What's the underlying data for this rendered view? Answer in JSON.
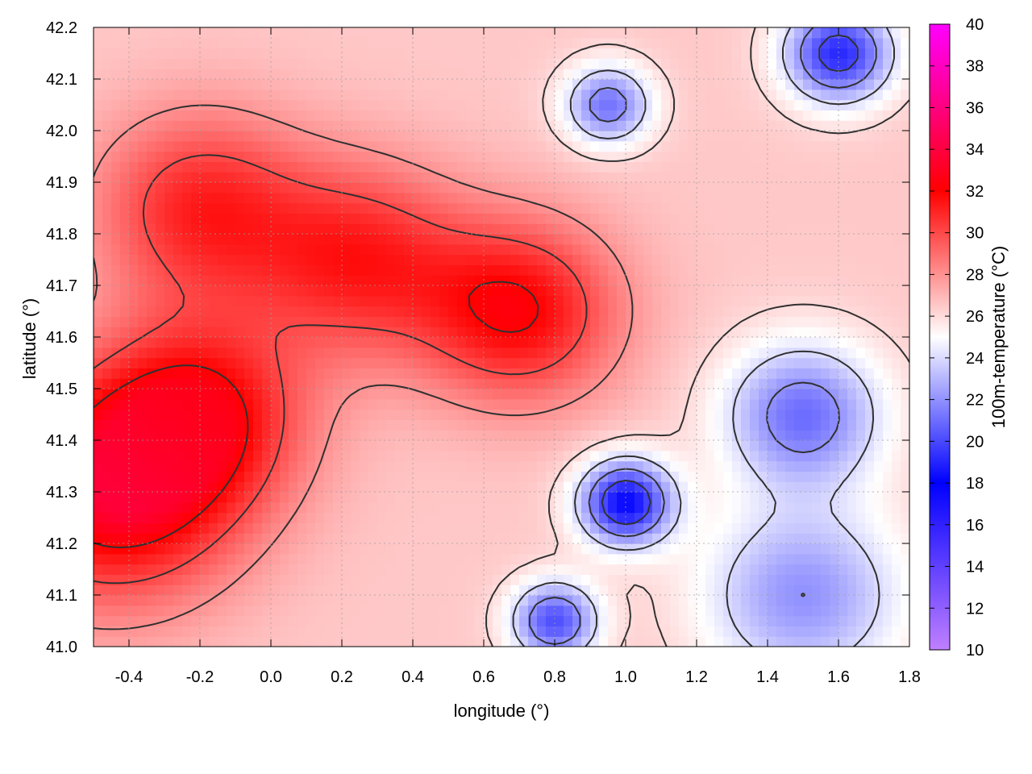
{
  "chart_data": {
    "type": "heatmap",
    "title": "",
    "xlabel": "longitude (°)",
    "ylabel": "latitude (°)",
    "colorbar_label": "100m-temperature (°C)",
    "xlim": [
      -0.5,
      1.8
    ],
    "ylim": [
      41.0,
      42.2
    ],
    "clim": [
      10,
      40
    ],
    "x_ticks": [
      "-0.4",
      "-0.2",
      "0.0",
      "0.2",
      "0.4",
      "0.6",
      "0.8",
      "1.0",
      "1.2",
      "1.4",
      "1.6",
      "1.8"
    ],
    "y_ticks": [
      "41.0",
      "41.1",
      "41.2",
      "41.3",
      "41.4",
      "41.5",
      "41.6",
      "41.7",
      "41.8",
      "41.9",
      "42.0",
      "42.1",
      "42.2"
    ],
    "colorbar_ticks": [
      "10",
      "12",
      "14",
      "16",
      "18",
      "20",
      "22",
      "24",
      "26",
      "28",
      "30",
      "32",
      "34",
      "36",
      "38",
      "40"
    ],
    "grid": true,
    "colormap": [
      {
        "value": 10,
        "color": "#c080ff"
      },
      {
        "value": 14,
        "color": "#6040ff"
      },
      {
        "value": 18,
        "color": "#0000ff"
      },
      {
        "value": 25,
        "color": "#ffffff"
      },
      {
        "value": 32,
        "color": "#ff0000"
      },
      {
        "value": 36,
        "color": "#ff0080"
      },
      {
        "value": 40,
        "color": "#ff00ff"
      }
    ],
    "hotspots": [
      {
        "x": -0.45,
        "y": 41.3,
        "temp": 33,
        "r": 0.35
      },
      {
        "x": -0.2,
        "y": 41.45,
        "temp": 31.5,
        "r": 0.3
      },
      {
        "x": 0.7,
        "y": 41.65,
        "temp": 32,
        "r": 0.28
      },
      {
        "x": 0.25,
        "y": 41.75,
        "temp": 31,
        "r": 0.3
      },
      {
        "x": -0.2,
        "y": 41.85,
        "temp": 31,
        "r": 0.3
      },
      {
        "x": 1.0,
        "y": 41.28,
        "temp": 18,
        "r": 0.13
      },
      {
        "x": 1.5,
        "y": 41.45,
        "temp": 21,
        "r": 0.22
      },
      {
        "x": 1.5,
        "y": 41.1,
        "temp": 22,
        "r": 0.28
      },
      {
        "x": 1.6,
        "y": 42.15,
        "temp": 19,
        "r": 0.15
      },
      {
        "x": 0.95,
        "y": 42.05,
        "temp": 21,
        "r": 0.12
      },
      {
        "x": 0.8,
        "y": 41.05,
        "temp": 20,
        "r": 0.12
      }
    ]
  }
}
